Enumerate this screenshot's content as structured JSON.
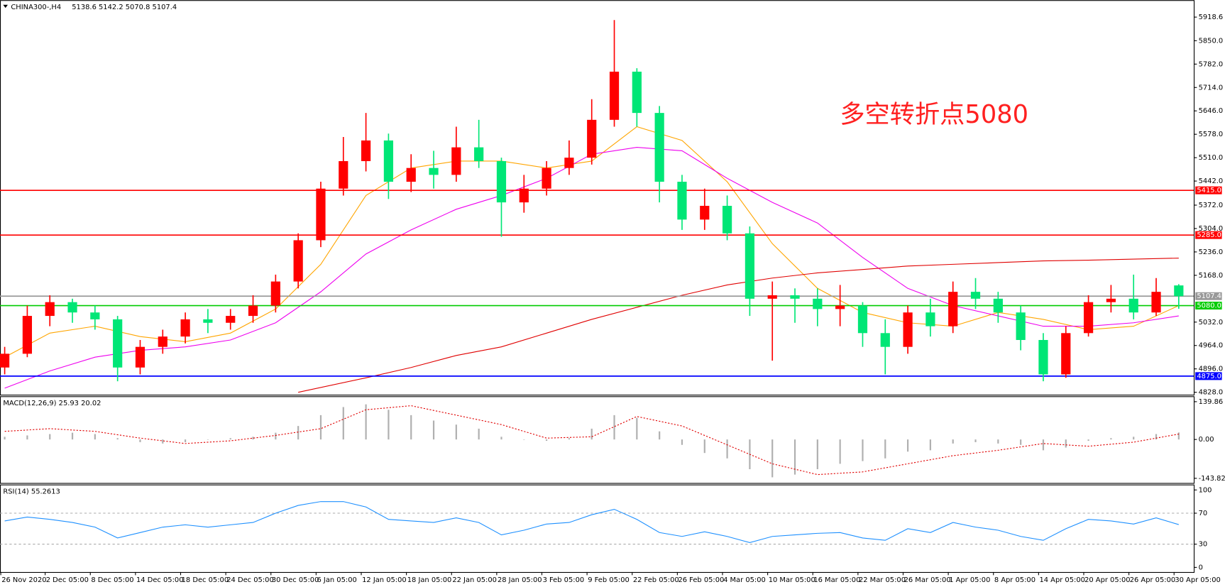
{
  "chart_data": [
    {
      "type": "candlestick",
      "title": "CHINA300-,H4",
      "subtitle": "5138.6 5142.2 5070.8 5107.4",
      "open": [
        4900,
        4940,
        5050,
        5090,
        5060,
        5040,
        4900,
        4960,
        4990,
        5040,
        5030,
        5050,
        5080,
        5150,
        5270,
        5420,
        5500,
        5560,
        5440,
        5480,
        5460,
        5540,
        5500,
        5380,
        5420,
        5480,
        5510,
        5620,
        5760,
        5640,
        5440,
        5330,
        5370,
        5290,
        5100,
        5110,
        5100,
        5070,
        5080,
        5000,
        4960,
        5060,
        5020,
        5120,
        5100,
        5060,
        4980,
        4880,
        5000,
        5090,
        5100,
        5060,
        5138.6
      ],
      "high": [
        4960,
        5080,
        5110,
        5100,
        5080,
        5050,
        4980,
        5010,
        5060,
        5070,
        5070,
        5110,
        5170,
        5290,
        5440,
        5570,
        5640,
        5580,
        5520,
        5530,
        5600,
        5620,
        5510,
        5460,
        5500,
        5560,
        5680,
        5910,
        5770,
        5660,
        5460,
        5420,
        5400,
        5310,
        5150,
        5130,
        5130,
        5140,
        5090,
        5040,
        5080,
        5100,
        5150,
        5160,
        5120,
        5080,
        5000,
        5020,
        5110,
        5140,
        5170,
        5160,
        5142.2
      ],
      "low": [
        4880,
        4930,
        5020,
        5030,
        5010,
        4860,
        4880,
        4940,
        4970,
        5000,
        5010,
        5030,
        5060,
        5130,
        5250,
        5400,
        5470,
        5390,
        5410,
        5420,
        5440,
        5480,
        5280,
        5350,
        5400,
        5460,
        5490,
        5600,
        5600,
        5380,
        5300,
        5300,
        5270,
        5050,
        4920,
        5030,
        5020,
        5020,
        4960,
        4880,
        4940,
        4990,
        5000,
        5070,
        5030,
        4950,
        4860,
        4870,
        4990,
        5060,
        5040,
        5050,
        5070.8
      ],
      "close": [
        4940,
        5050,
        5090,
        5060,
        5040,
        4900,
        4960,
        4990,
        5040,
        5030,
        5050,
        5080,
        5150,
        5270,
        5420,
        5500,
        5560,
        5440,
        5480,
        5460,
        5540,
        5500,
        5380,
        5420,
        5480,
        5510,
        5620,
        5760,
        5640,
        5440,
        5330,
        5370,
        5290,
        5100,
        5110,
        5100,
        5070,
        5080,
        5000,
        4960,
        5060,
        5020,
        5120,
        5100,
        5060,
        4980,
        4880,
        5000,
        5090,
        5100,
        5060,
        5120,
        5107.4
      ],
      "up_color": "#ff0000",
      "down_color": "#00e676",
      "ylim": [
        4821,
        5968
      ],
      "yticks": [
        5918.6,
        {
          "value": 5850,
          "label": "5850.0"
        },
        {
          "value": 5782,
          "label": "5782.0"
        },
        {
          "value": 5714,
          "label": "5714.0"
        },
        {
          "value": 5646,
          "label": "5646.0"
        },
        {
          "value": 5578,
          "label": "5578.0"
        },
        {
          "value": 5510,
          "label": "5510.0"
        },
        {
          "value": 5442,
          "label": "5442.0"
        },
        {
          "value": 5372,
          "label": "5372.0"
        },
        {
          "value": 5304,
          "label": "5304.0"
        },
        {
          "value": 5236,
          "label": "5236.0"
        },
        {
          "value": 5168,
          "label": "5168.0"
        },
        {
          "value": 5032,
          "label": "5032.0"
        },
        {
          "value": 4964,
          "label": "4964.0"
        },
        {
          "value": 4896,
          "label": "4896.0"
        },
        {
          "value": 4828,
          "label": "4828.0"
        }
      ],
      "lines": [
        {
          "color": "#ffa500",
          "x": [
            0,
            2,
            4,
            6,
            8,
            10,
            12,
            14,
            16,
            18,
            20,
            22,
            24,
            26,
            28,
            30,
            32,
            34,
            36,
            38,
            40,
            42,
            44,
            46,
            48,
            50,
            52
          ],
          "values": [
            4930,
            5000,
            5020,
            4990,
            4975,
            5000,
            5070,
            5200,
            5400,
            5480,
            5500,
            5500,
            5480,
            5500,
            5600,
            5560,
            5440,
            5260,
            5130,
            5060,
            5030,
            5020,
            5060,
            5040,
            5010,
            5020,
            5080
          ]
        },
        {
          "color": "#ee00ee",
          "x": [
            0,
            2,
            4,
            6,
            8,
            10,
            12,
            14,
            16,
            18,
            20,
            22,
            24,
            26,
            28,
            30,
            32,
            34,
            36,
            38,
            40,
            42,
            44,
            46,
            48,
            50,
            52
          ],
          "values": [
            4840,
            4890,
            4930,
            4950,
            4960,
            4980,
            5030,
            5120,
            5230,
            5300,
            5360,
            5400,
            5450,
            5520,
            5540,
            5530,
            5450,
            5380,
            5320,
            5220,
            5130,
            5080,
            5050,
            5020,
            5020,
            5030,
            5050
          ]
        },
        {
          "color": "#e00000",
          "x": [
            13,
            16,
            18,
            20,
            22,
            24,
            26,
            28,
            30,
            32,
            34,
            36,
            38,
            40,
            42,
            44,
            46,
            48,
            50,
            52
          ],
          "values": [
            4828,
            4870,
            4900,
            4935,
            4960,
            5000,
            5040,
            5075,
            5110,
            5140,
            5160,
            5175,
            5185,
            5195,
            5200,
            5205,
            5210,
            5212,
            5215,
            5218
          ]
        }
      ],
      "levels": [
        {
          "value": 5415,
          "label": "5415.0",
          "color": "#ff0000"
        },
        {
          "value": 5285,
          "label": "5285.0",
          "color": "#ff0000"
        },
        {
          "value": 5080,
          "label": "5080.0",
          "color": "#00cc00"
        },
        {
          "value": 4875,
          "label": "4875.0",
          "color": "#0000ff"
        },
        {
          "value": 5107.4,
          "label": "5107.4",
          "color": "#999999"
        }
      ],
      "annotation": "多空转折点5080",
      "annotation_color": "#ff2020"
    },
    {
      "type": "macd",
      "title": "MACD(12,26,9) 25.93 20.02",
      "histogram": [
        10,
        15,
        20,
        25,
        20,
        5,
        -10,
        -15,
        -10,
        0,
        5,
        10,
        25,
        50,
        90,
        120,
        130,
        110,
        90,
        70,
        55,
        40,
        10,
        0,
        -5,
        5,
        40,
        90,
        80,
        30,
        -20,
        -50,
        -70,
        -110,
        -140,
        -130,
        -110,
        -90,
        -80,
        -70,
        -45,
        -40,
        -15,
        -10,
        -15,
        -20,
        -40,
        -30,
        -5,
        5,
        10,
        20,
        25.93
      ],
      "hist_color": "#b0b0b0",
      "signal": {
        "color": "#e00000",
        "x": [
          0,
          2,
          4,
          6,
          8,
          10,
          12,
          14,
          16,
          18,
          20,
          22,
          24,
          26,
          28,
          30,
          32,
          34,
          36,
          38,
          40,
          42,
          44,
          46,
          48,
          50,
          52
        ],
        "values": [
          30,
          40,
          30,
          5,
          -15,
          -5,
          15,
          40,
          110,
          125,
          90,
          55,
          5,
          10,
          85,
          50,
          -20,
          -90,
          -130,
          -120,
          -90,
          -60,
          -40,
          -15,
          -25,
          -10,
          20.02
        ]
      },
      "ylim": [
        -161,
        160
      ],
      "yticks": [
        139.86,
        {
          "value": 0,
          "label": "0.00"
        },
        -143.82
      ]
    },
    {
      "type": "line",
      "title": "RSI(14) 55.2613",
      "values": [
        60,
        65,
        62,
        58,
        52,
        38,
        45,
        52,
        55,
        52,
        55,
        58,
        70,
        80,
        85,
        85,
        78,
        62,
        60,
        58,
        64,
        58,
        42,
        48,
        56,
        58,
        68,
        75,
        62,
        45,
        40,
        46,
        40,
        32,
        40,
        42,
        44,
        45,
        38,
        35,
        50,
        45,
        58,
        52,
        48,
        40,
        35,
        50,
        62,
        60,
        56,
        64,
        55.26
      ],
      "color": "#1e90ff",
      "ylim": [
        -6,
        107
      ],
      "yticks": [
        100,
        70,
        30,
        0
      ],
      "categories": [
        "26 Nov 2020",
        null,
        "2 Dec 05:00",
        null,
        "8 Dec 05:00",
        null,
        "14 Dec 05:00",
        null,
        "18 Dec 05:00",
        null,
        "24 Dec 05:00",
        null,
        "30 Dec 05:00",
        null,
        "6 Jan 05:00",
        null,
        "12 Jan 05:00",
        null,
        "18 Jan 05:00",
        null,
        "22 Jan 05:00",
        null,
        "28 Jan 05:00",
        null,
        "3 Feb 05:00",
        null,
        "9 Feb 05:00",
        null,
        "22 Feb 05:00",
        null,
        "26 Feb 05:00",
        null,
        "4 Mar 05:00",
        null,
        "10 Mar 05:00",
        null,
        "16 Mar 05:00",
        null,
        "22 Mar 05:00",
        null,
        "26 Mar 05:00",
        null,
        "1 Apr 05:00",
        null,
        "8 Apr 05:00",
        null,
        "14 Apr 05:00",
        null,
        "20 Apr 05:00",
        null,
        "26 Apr 05:00",
        null,
        "30 Apr 05:00"
      ]
    }
  ]
}
